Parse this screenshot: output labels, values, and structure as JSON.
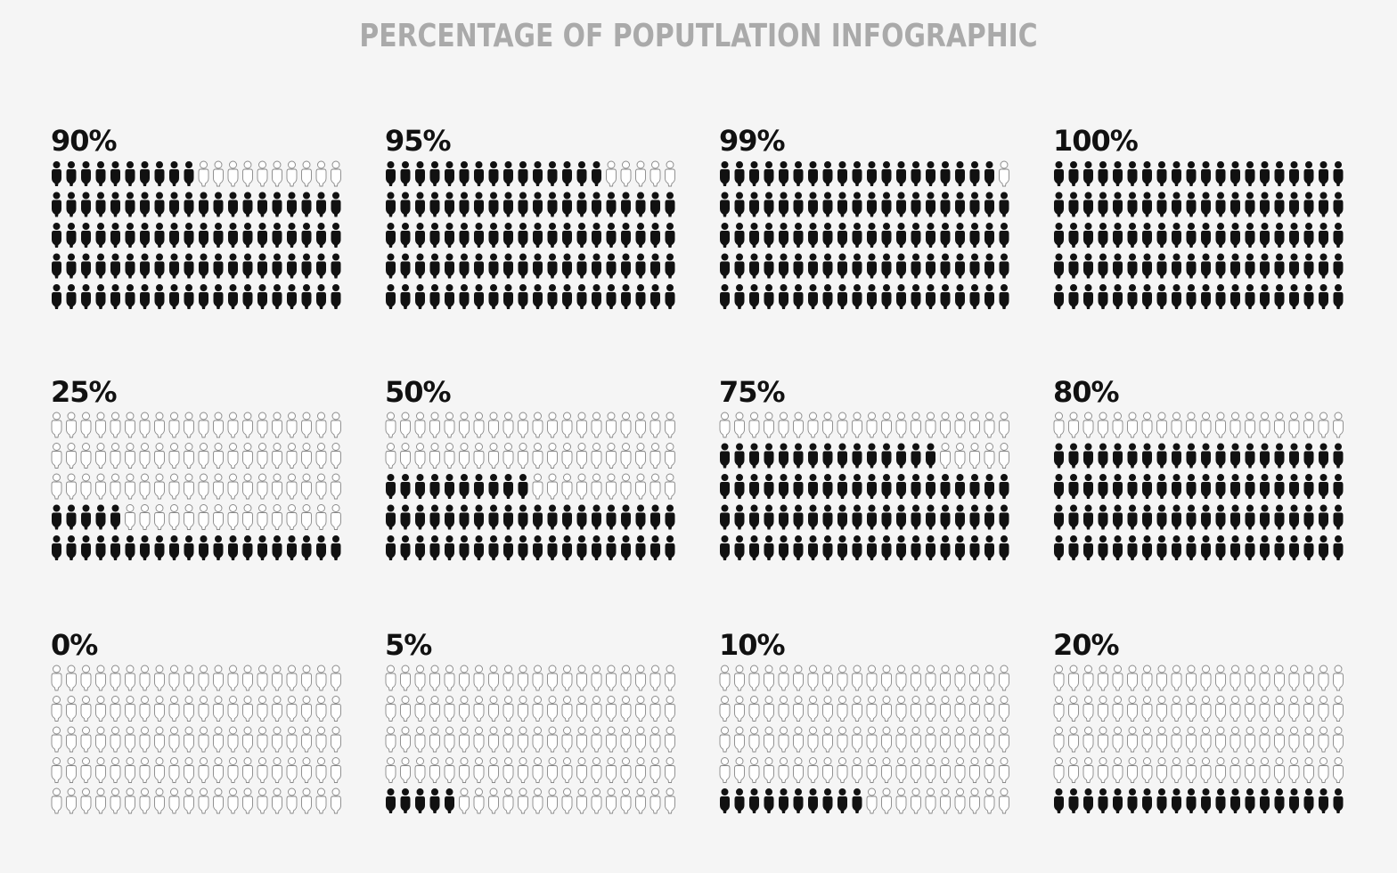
{
  "title": "PERCENTAGE OF POPUTLATION INFOGRAPHIC",
  "colors": {
    "filled": "#111111",
    "empty_stroke": "#888888",
    "empty_fill": "#ffffff",
    "title": "#aaaaaa",
    "background": "#f5f5f5"
  },
  "icon": "person-icon",
  "chart_data": [
    {
      "type": "pictograph",
      "label": "90%",
      "value": 90,
      "rows": 5,
      "cols": 20,
      "fill_from": "bottom-left"
    },
    {
      "type": "pictograph",
      "label": "95%",
      "value": 95,
      "rows": 5,
      "cols": 20,
      "fill_from": "bottom-left"
    },
    {
      "type": "pictograph",
      "label": "99%",
      "value": 99,
      "rows": 5,
      "cols": 20,
      "fill_from": "bottom-left"
    },
    {
      "type": "pictograph",
      "label": "100%",
      "value": 100,
      "rows": 5,
      "cols": 20,
      "fill_from": "bottom-left"
    },
    {
      "type": "pictograph",
      "label": "25%",
      "value": 25,
      "rows": 5,
      "cols": 20,
      "fill_from": "bottom-left"
    },
    {
      "type": "pictograph",
      "label": "50%",
      "value": 50,
      "rows": 5,
      "cols": 20,
      "fill_from": "bottom-left"
    },
    {
      "type": "pictograph",
      "label": "75%",
      "value": 75,
      "rows": 5,
      "cols": 20,
      "fill_from": "bottom-left"
    },
    {
      "type": "pictograph",
      "label": "80%",
      "value": 80,
      "rows": 5,
      "cols": 20,
      "fill_from": "bottom-left"
    },
    {
      "type": "pictograph",
      "label": "0%",
      "value": 0,
      "rows": 5,
      "cols": 20,
      "fill_from": "bottom-left"
    },
    {
      "type": "pictograph",
      "label": "5%",
      "value": 5,
      "rows": 5,
      "cols": 20,
      "fill_from": "bottom-left"
    },
    {
      "type": "pictograph",
      "label": "10%",
      "value": 10,
      "rows": 5,
      "cols": 20,
      "fill_from": "bottom-left"
    },
    {
      "type": "pictograph",
      "label": "20%",
      "value": 20,
      "rows": 5,
      "cols": 20,
      "fill_from": "bottom-left"
    }
  ]
}
